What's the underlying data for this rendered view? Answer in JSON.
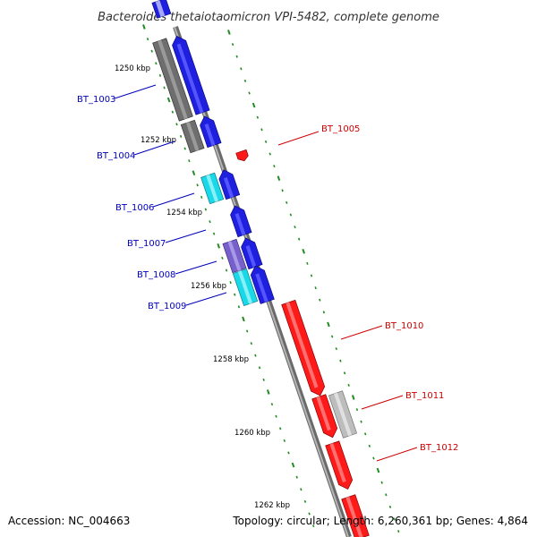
{
  "title": "Bacteroides thetaiotaomicron VPI-5482, complete genome",
  "footer": {
    "accession": "Accession: NC_004663",
    "summary": "Topology: circular; Length: 6,260,361 bp; Genes: 4,864"
  },
  "colors": {
    "background": "#ffffff",
    "backbone": "#888888",
    "tick_green": "#228b22",
    "forward_label": "#0000bb",
    "reverse_label": "#cc0000",
    "blue_gene": "#1f1fe0",
    "gray_gene": "#6e6e6e",
    "cyan_gene": "#19d8e8",
    "purple_gene": "#7760cc",
    "light_gray_gene": "#bdbdbd",
    "red_gene": "#ff1a1a"
  },
  "ruler": {
    "labels": [
      "1250 kbp",
      "1252 kbp",
      "1254 kbp",
      "1256 kbp",
      "1258 kbp",
      "1260 kbp",
      "1262 kbp"
    ]
  },
  "genes": {
    "forward": [
      {
        "label": "BT_1003"
      },
      {
        "label": "BT_1004"
      },
      {
        "label": "BT_1006"
      },
      {
        "label": "BT_1007"
      },
      {
        "label": "BT_1008"
      },
      {
        "label": "BT_1009"
      }
    ],
    "reverse": [
      {
        "label": "BT_1005"
      },
      {
        "label": "BT_1010"
      },
      {
        "label": "BT_1011"
      },
      {
        "label": "BT_1012"
      }
    ]
  }
}
